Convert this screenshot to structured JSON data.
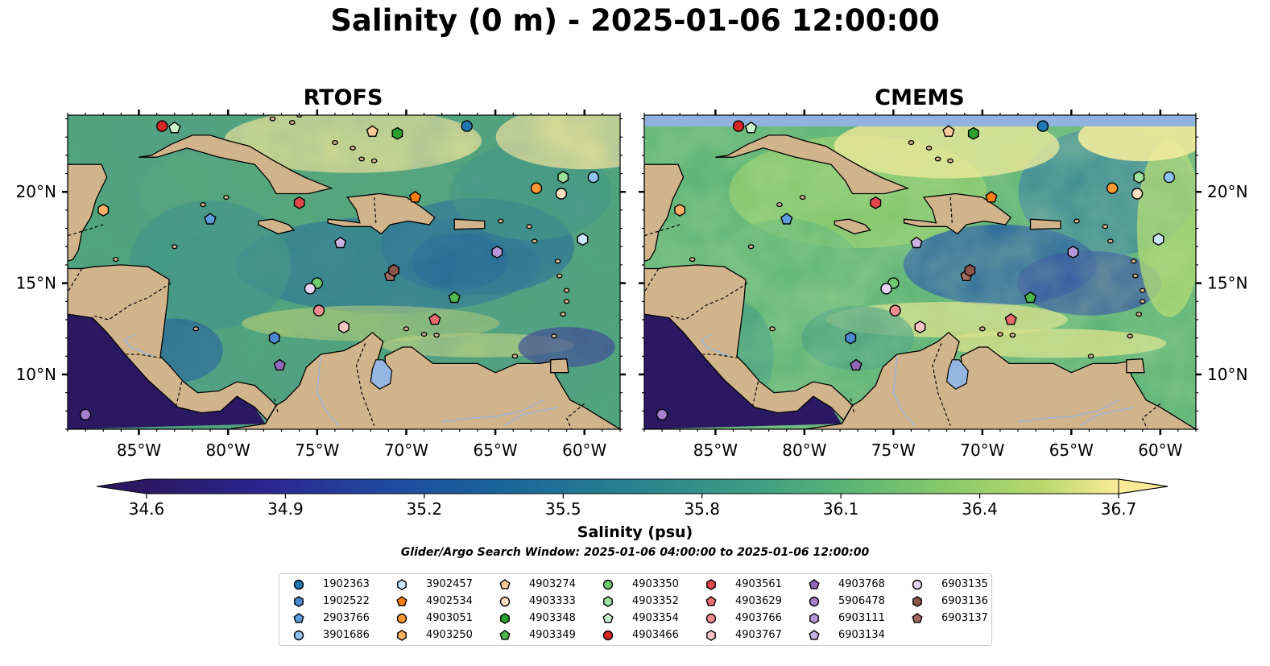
{
  "title": "Salinity (0 m) - 2025-01-06 12:00:00",
  "panels": [
    {
      "title": "RTOFS"
    },
    {
      "title": "CMEMS"
    }
  ],
  "axes": {
    "lon_ticks": [
      "85°W",
      "80°W",
      "75°W",
      "70°W",
      "65°W",
      "60°W"
    ],
    "lon_values": [
      -85,
      -80,
      -75,
      -70,
      -65,
      -60
    ],
    "lat_ticks": [
      "10°N",
      "15°N",
      "20°N"
    ],
    "lat_values": [
      10,
      15,
      20
    ],
    "lon_range": [
      -89,
      -58
    ],
    "lat_range": [
      7,
      24.2
    ]
  },
  "colorbar": {
    "min": 34.6,
    "max": 36.7,
    "tick_labels": [
      "34.6",
      "34.9",
      "35.2",
      "35.5",
      "35.8",
      "36.1",
      "36.4",
      "36.7"
    ],
    "label": "Salinity (psu)",
    "extend": "both",
    "colormap": [
      "#2a1862",
      "#2c2590",
      "#1f4aa0",
      "#19669a",
      "#29818f",
      "#3d9c84",
      "#5ab575",
      "#86c96a",
      "#b8d86d",
      "#fbeb98"
    ]
  },
  "search_window": "Glider/Argo Search Window: 2025-01-06 04:00:00 to 2025-01-06 12:00:00",
  "legend": [
    {
      "id": "1902363",
      "marker": "circle",
      "color": "#1f77b4"
    },
    {
      "id": "1902522",
      "marker": "hexagon",
      "color": "#4b8ad0"
    },
    {
      "id": "2903766",
      "marker": "pentagon",
      "color": "#5c9ee0"
    },
    {
      "id": "3901686",
      "marker": "circle",
      "color": "#8fc2f0"
    },
    {
      "id": "3902457",
      "marker": "hexagon",
      "color": "#c9e5fb"
    },
    {
      "id": "4902534",
      "marker": "pentagon",
      "color": "#ff7f0e"
    },
    {
      "id": "4903051",
      "marker": "circle",
      "color": "#ff9832"
    },
    {
      "id": "4903250",
      "marker": "hexagon",
      "color": "#ffb066"
    },
    {
      "id": "4903274",
      "marker": "pentagon",
      "color": "#ffcc99"
    },
    {
      "id": "4903333",
      "marker": "circle",
      "color": "#ffe0c2"
    },
    {
      "id": "4903348",
      "marker": "hexagon",
      "color": "#2ca02c"
    },
    {
      "id": "4903349",
      "marker": "pentagon",
      "color": "#4cb84c"
    },
    {
      "id": "4903350",
      "marker": "circle",
      "color": "#6fca6f"
    },
    {
      "id": "4903352",
      "marker": "hexagon",
      "color": "#9ee09e"
    },
    {
      "id": "4903354",
      "marker": "pentagon",
      "color": "#cdf5cd"
    },
    {
      "id": "4903466",
      "marker": "circle",
      "color": "#d62728"
    },
    {
      "id": "4903561",
      "marker": "hexagon",
      "color": "#e0484b"
    },
    {
      "id": "4903629",
      "marker": "pentagon",
      "color": "#ea6b6e"
    },
    {
      "id": "4903766",
      "marker": "circle",
      "color": "#f08c8e"
    },
    {
      "id": "4903767",
      "marker": "hexagon",
      "color": "#f8c4c4"
    },
    {
      "id": "4903768",
      "marker": "pentagon",
      "color": "#9467bd"
    },
    {
      "id": "5906478",
      "marker": "circle",
      "color": "#a57fcc"
    },
    {
      "id": "6903111",
      "marker": "hexagon",
      "color": "#b698d8"
    },
    {
      "id": "6903134",
      "marker": "pentagon",
      "color": "#cbb2e6"
    },
    {
      "id": "6903135",
      "marker": "circle",
      "color": "#e5d4f5"
    },
    {
      "id": "6903136",
      "marker": "hexagon",
      "color": "#8c564b"
    },
    {
      "id": "6903137",
      "marker": "pentagon",
      "color": "#a16d61"
    }
  ],
  "glider_positions": {
    "RTOFS": [
      {
        "id": "4903466",
        "lon": -83.7,
        "lat": 23.6
      },
      {
        "id": "4903354",
        "lon": -83.0,
        "lat": 23.5
      },
      {
        "id": "4903274",
        "lon": -71.9,
        "lat": 23.3
      },
      {
        "id": "4903348",
        "lon": -70.5,
        "lat": 23.2
      },
      {
        "id": "1902363",
        "lon": -66.6,
        "lat": 23.6
      },
      {
        "id": "4903350",
        "lon": -75.0,
        "lat": 15.0
      },
      {
        "id": "6903135",
        "lon": -75.4,
        "lat": 14.7
      },
      {
        "id": "4903766",
        "lon": -74.9,
        "lat": 13.5
      },
      {
        "id": "4903767",
        "lon": -73.5,
        "lat": 12.6
      },
      {
        "id": "1902522",
        "lon": -77.4,
        "lat": 12.0
      },
      {
        "id": "4903768",
        "lon": -77.1,
        "lat": 10.5
      },
      {
        "id": "5906478",
        "lon": -88.0,
        "lat": 7.8
      },
      {
        "id": "4903250",
        "lon": -87.0,
        "lat": 19.0
      },
      {
        "id": "2903766",
        "lon": -81.0,
        "lat": 18.5
      },
      {
        "id": "4903561",
        "lon": -76.0,
        "lat": 19.4
      },
      {
        "id": "4902534",
        "lon": -69.5,
        "lat": 19.7
      },
      {
        "id": "6903134",
        "lon": -73.7,
        "lat": 17.2
      },
      {
        "id": "6903137",
        "lon": -70.9,
        "lat": 15.4
      },
      {
        "id": "6903136",
        "lon": -70.7,
        "lat": 15.7
      },
      {
        "id": "4903349",
        "lon": -67.3,
        "lat": 14.2
      },
      {
        "id": "4903629",
        "lon": -68.4,
        "lat": 13.0
      },
      {
        "id": "6903111",
        "lon": -64.9,
        "lat": 16.7
      },
      {
        "id": "4903051",
        "lon": -62.7,
        "lat": 20.2
      },
      {
        "id": "4903333",
        "lon": -61.3,
        "lat": 19.9
      },
      {
        "id": "4903352",
        "lon": -61.2,
        "lat": 20.8
      },
      {
        "id": "3901686",
        "lon": -59.5,
        "lat": 20.8
      },
      {
        "id": "3902457",
        "lon": -60.1,
        "lat": 17.4
      }
    ]
  }
}
